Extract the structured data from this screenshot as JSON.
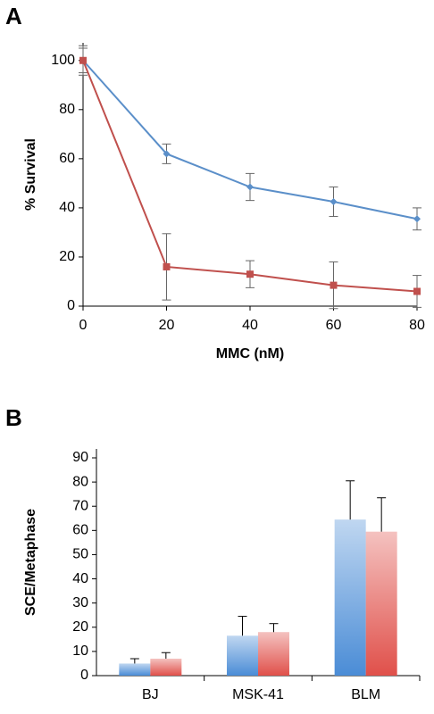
{
  "chart_data": [
    {
      "type": "line",
      "panel_label": "A",
      "x_label": "MMC (nM)",
      "y_label": "% Survival",
      "x": [
        0,
        20,
        40,
        60,
        80
      ],
      "xlim": [
        0,
        80
      ],
      "xticks": [
        0,
        20,
        40,
        60,
        80
      ],
      "ylim": [
        0,
        105
      ],
      "yticks": [
        0,
        20,
        40,
        60,
        80,
        100
      ],
      "series": [
        {
          "color": "#5b8fc9",
          "marker": "diamond",
          "values": [
            100,
            62,
            48.5,
            42.5,
            35.5
          ],
          "errors": [
            6,
            4,
            5.5,
            6,
            4.5
          ]
        },
        {
          "color": "#c0504d",
          "marker": "square",
          "values": [
            100,
            16,
            13,
            8.5,
            6
          ],
          "errors": [
            5,
            13.5,
            5.5,
            9.5,
            6.5
          ]
        }
      ]
    },
    {
      "type": "bar",
      "panel_label": "B",
      "y_label": "SCE/Metaphase",
      "categories": [
        "BJ",
        "MSK-41",
        "BLM"
      ],
      "ylim": [
        0,
        90
      ],
      "yticks": [
        0,
        10,
        20,
        30,
        40,
        50,
        60,
        70,
        80,
        90
      ],
      "series": [
        {
          "color": "#4a8cd6",
          "values": [
            5,
            16.5,
            64.5
          ],
          "errors": [
            2,
            8,
            16
          ]
        },
        {
          "color": "#e0504a",
          "values": [
            7,
            18,
            59.5
          ],
          "errors": [
            2.5,
            3.5,
            14
          ]
        }
      ]
    }
  ]
}
